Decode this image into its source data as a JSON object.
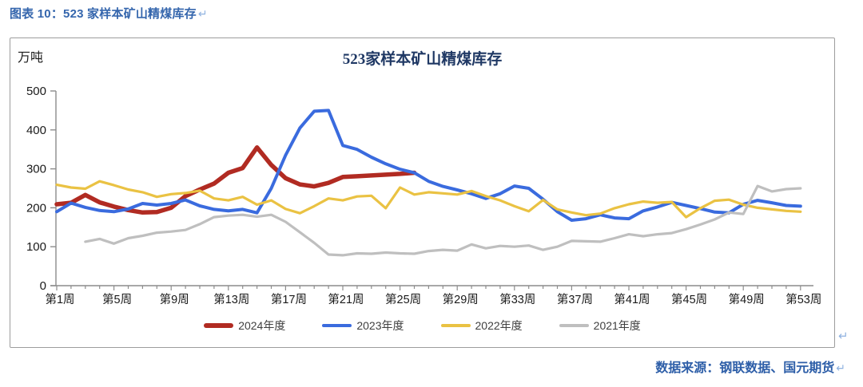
{
  "header": {
    "caption": "图表 10：523 家样本矿山精煤库存",
    "return_mark": "↵"
  },
  "chart": {
    "title": "523家样本矿山精煤库存",
    "unit": "万吨",
    "return_mark": "↵"
  },
  "footer": {
    "source": "数据来源：钢联数据、国元期货",
    "return_mark": "↵"
  },
  "chart_data": {
    "type": "line",
    "title": "523家样本矿山精煤库存",
    "ylabel": "万吨",
    "ylim": [
      0,
      500
    ],
    "yticks": [
      0,
      100,
      200,
      300,
      400,
      500
    ],
    "grid": false,
    "legend_position": "bottom",
    "x_axis": {
      "unit": "week",
      "min_week": 1,
      "max_week": 53,
      "tick_labels": [
        {
          "week": 1,
          "label": "第1周"
        },
        {
          "week": 5,
          "label": "第5周"
        },
        {
          "week": 9,
          "label": "第9周"
        },
        {
          "week": 13,
          "label": "第13周"
        },
        {
          "week": 17,
          "label": "第17周"
        },
        {
          "week": 21,
          "label": "第21周"
        },
        {
          "week": 25,
          "label": "第25周"
        },
        {
          "week": 29,
          "label": "第29周"
        },
        {
          "week": 33,
          "label": "第33周"
        },
        {
          "week": 37,
          "label": "第37周"
        },
        {
          "week": 41,
          "label": "第41周"
        },
        {
          "week": 45,
          "label": "第45周"
        },
        {
          "week": 49,
          "label": "第49周"
        },
        {
          "week": 53,
          "label": "第53周"
        }
      ]
    },
    "series": [
      {
        "name": "2024年度",
        "color": "#B12B22",
        "line_width": 5.5,
        "start_week": 1,
        "values": [
          209,
          213,
          233,
          214,
          203,
          194,
          188,
          189,
          200,
          230,
          247,
          262,
          290,
          302,
          355,
          310,
          276,
          260,
          255,
          264,
          279,
          281,
          283,
          285,
          287,
          290
        ]
      },
      {
        "name": "2023年度",
        "color": "#3A6BDE",
        "line_width": 4,
        "start_week": 1,
        "values": [
          190,
          212,
          201,
          193,
          190,
          197,
          211,
          207,
          211,
          220,
          205,
          196,
          192,
          196,
          187,
          250,
          335,
          405,
          448,
          450,
          360,
          350,
          330,
          313,
          299,
          290,
          268,
          255,
          246,
          236,
          224,
          236,
          256,
          250,
          222,
          190,
          168,
          172,
          182,
          174,
          172,
          192,
          202,
          214,
          206,
          198,
          189,
          187,
          209,
          219,
          213,
          206,
          204
        ]
      },
      {
        "name": "2022年度",
        "color": "#EAC243",
        "line_width": 3.2,
        "start_week": 1,
        "values": [
          259,
          252,
          249,
          268,
          258,
          247,
          240,
          228,
          235,
          238,
          244,
          224,
          219,
          228,
          208,
          219,
          197,
          186,
          204,
          224,
          219,
          229,
          231,
          199,
          252,
          234,
          240,
          237,
          234,
          243,
          230,
          219,
          204,
          191,
          220,
          196,
          188,
          181,
          185,
          199,
          209,
          216,
          213,
          215,
          176,
          199,
          218,
          221,
          208,
          200,
          196,
          192,
          190
        ]
      },
      {
        "name": "2021年度",
        "color": "#BFBFBF",
        "line_width": 3.2,
        "start_week": 3,
        "values": [
          113,
          120,
          108,
          122,
          128,
          136,
          139,
          143,
          158,
          176,
          180,
          182,
          177,
          182,
          164,
          137,
          110,
          80,
          78,
          83,
          82,
          85,
          83,
          82,
          89,
          92,
          90,
          106,
          96,
          102,
          100,
          103,
          92,
          100,
          115,
          114,
          113,
          122,
          132,
          127,
          132,
          135,
          145,
          157,
          170,
          188,
          184,
          256,
          242,
          248,
          250
        ]
      }
    ]
  }
}
